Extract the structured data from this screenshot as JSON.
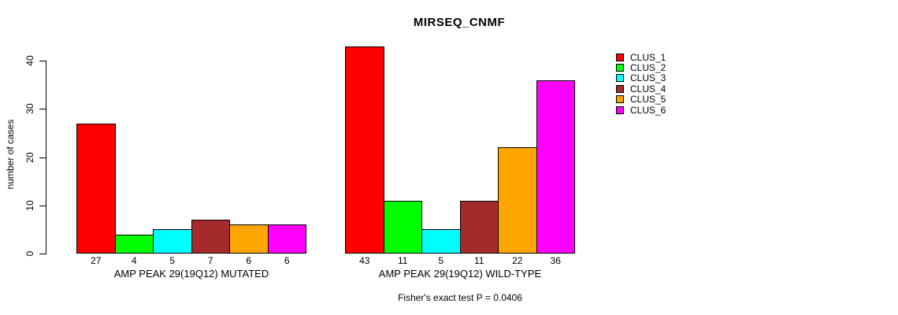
{
  "title": "MIRSEQ_CNMF",
  "chart_data": {
    "type": "bar",
    "title": "MIRSEQ_CNMF",
    "ylabel": "number of cases",
    "xlabel": "",
    "ylim": [
      0,
      43
    ],
    "yticks": [
      0,
      10,
      20,
      30,
      40
    ],
    "grid": false,
    "legend_position": "top-right-outside",
    "clusters": [
      {
        "name": "CLUS_1",
        "color": "#FF0000"
      },
      {
        "name": "CLUS_2",
        "color": "#00FF00"
      },
      {
        "name": "CLUS_3",
        "color": "#00FFFF"
      },
      {
        "name": "CLUS_4",
        "color": "#A52A2A"
      },
      {
        "name": "CLUS_5",
        "color": "#FFA500"
      },
      {
        "name": "CLUS_6",
        "color": "#FF00FF"
      }
    ],
    "groups": [
      {
        "label": "AMP PEAK 29(19Q12) MUTATED",
        "values": [
          27,
          4,
          5,
          7,
          6,
          6
        ]
      },
      {
        "label": "AMP PEAK 29(19Q12) WILD-TYPE",
        "values": [
          43,
          11,
          5,
          11,
          22,
          36
        ]
      }
    ],
    "annotation": "Fisher's exact test P = 0.0406"
  }
}
